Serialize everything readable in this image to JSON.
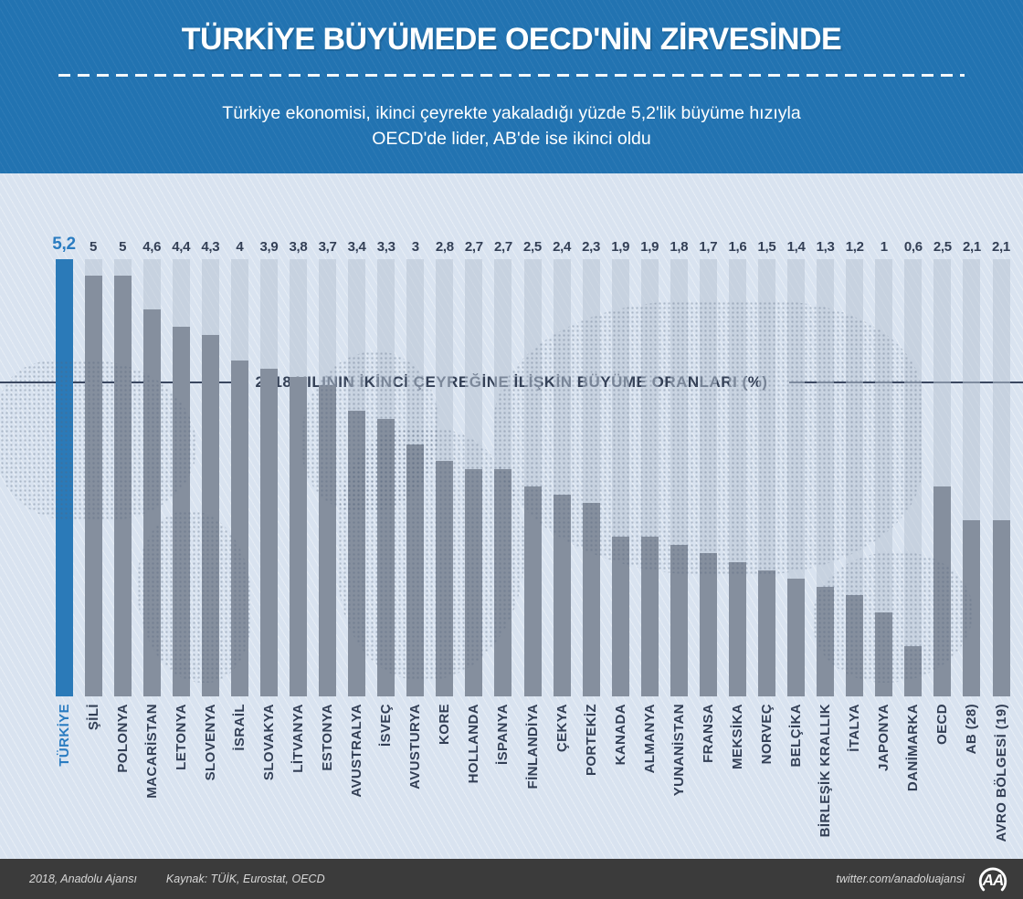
{
  "header": {
    "title": "TÜRKİYE BÜYÜMEDE OECD'NİN ZİRVESİNDE",
    "subtitle_line1": "Türkiye ekonomisi, ikinci çeyrekte yakaladığı yüzde 5,2'lik büyüme hızıyla",
    "subtitle_line2": "OECD'de lider, AB'de ise ikinci oldu"
  },
  "chart_data": {
    "type": "bar",
    "title": "2018 YILININ İKİNCİ ÇEYREĞİNE İLİŞKİN BÜYÜME ORANLARI (%)",
    "unit": "%",
    "ylim": [
      0,
      5.2
    ],
    "grid": false,
    "legend": "none",
    "categories": [
      "TÜRKİYE",
      "ŞİLİ",
      "POLONYA",
      "MACARİSTAN",
      "LETONYA",
      "SLOVENYA",
      "İSRAİL",
      "SLOVAKYA",
      "LİTVANYA",
      "ESTONYA",
      "AVUSTRALYA",
      "İSVEÇ",
      "AVUSTURYA",
      "KORE",
      "HOLLANDA",
      "İSPANYA",
      "FİNLANDİYA",
      "ÇEKYA",
      "PORTEKİZ",
      "KANADA",
      "ALMANYA",
      "YUNANİSTAN",
      "FRANSA",
      "MEKSİKA",
      "NORVEÇ",
      "BELÇİKA",
      "BİRLEŞİK KRALLIK",
      "İTALYA",
      "JAPONYA",
      "DANİMARKA",
      "OECD",
      "AB (28)",
      "AVRO BÖLGESİ (19)"
    ],
    "values": [
      5.2,
      5,
      5,
      4.6,
      4.4,
      4.3,
      4,
      3.9,
      3.8,
      3.7,
      3.4,
      3.3,
      3,
      2.8,
      2.7,
      2.7,
      2.5,
      2.4,
      2.3,
      1.9,
      1.9,
      1.8,
      1.7,
      1.6,
      1.5,
      1.4,
      1.3,
      1.2,
      1,
      0.6,
      2.5,
      2.1,
      2.1
    ],
    "value_labels": [
      "5,2",
      "5",
      "5",
      "4,6",
      "4,4",
      "4,3",
      "4",
      "3,9",
      "3,8",
      "3,7",
      "3,4",
      "3,3",
      "3",
      "2,8",
      "2,7",
      "2,7",
      "2,5",
      "2,4",
      "2,3",
      "1,9",
      "1,9",
      "1,8",
      "1,7",
      "1,6",
      "1,5",
      "1,4",
      "1,3",
      "1,2",
      "1",
      "0,6",
      "2,5",
      "2,1",
      "2,1"
    ],
    "highlight_index": 0,
    "highlight_color": "#2b7ab8",
    "bar_color": "#858f9e",
    "track_color": "#b8c4d4"
  },
  "colors": {
    "header_bg": "#2273b1",
    "section_bg": "#d9e3f0",
    "text_navy": "#333f55",
    "footer_bg": "#3b3b3b"
  },
  "footer": {
    "credit": "2018, Anadolu Ajansı",
    "source": "Kaynak: TÜİK, Eurostat, OECD",
    "twitter": "twitter.com/anadoluajansi",
    "logo_text": "AA"
  }
}
